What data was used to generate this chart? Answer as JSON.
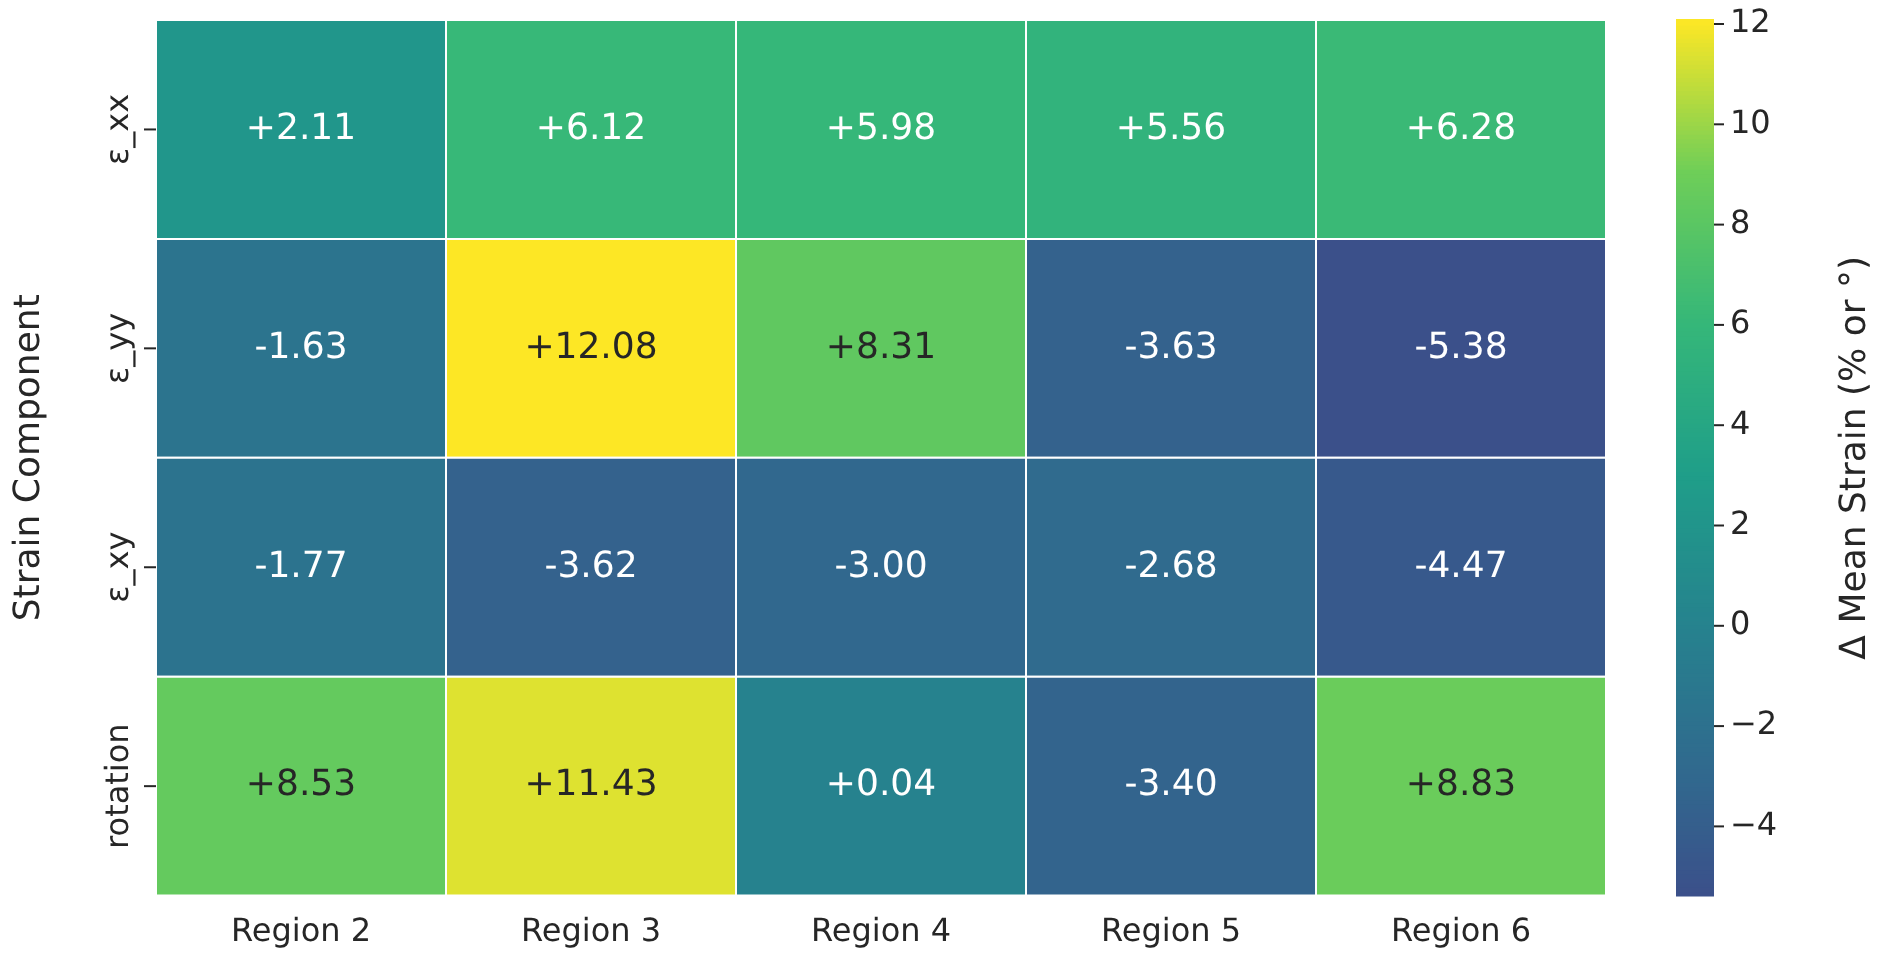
{
  "chart_data": {
    "type": "heatmap",
    "categories": [
      "Region 2",
      "Region 3",
      "Region 4",
      "Region 5",
      "Region 6"
    ],
    "y_categories": [
      "ε_xx",
      "ε_yy",
      "ε_xy",
      "rotation"
    ],
    "cells": [
      [
        2.11,
        6.12,
        5.98,
        5.56,
        6.28
      ],
      [
        -1.63,
        12.08,
        8.31,
        -3.63,
        -5.38
      ],
      [
        -1.77,
        -3.62,
        -3.0,
        -2.68,
        -4.47
      ],
      [
        8.53,
        11.43,
        0.04,
        -3.4,
        8.83
      ]
    ],
    "cell_labels": [
      [
        "+2.11",
        "+6.12",
        "+5.98",
        "+5.56",
        "+6.28"
      ],
      [
        "-1.63",
        "+12.08",
        "+8.31",
        "-3.63",
        "-5.38"
      ],
      [
        "-1.77",
        "-3.62",
        "-3.00",
        "-2.68",
        "-4.47"
      ],
      [
        "+8.53",
        "+11.43",
        "+0.04",
        "-3.40",
        "+8.83"
      ]
    ],
    "ylabel": "Strain Component",
    "clabel": "Δ Mean Strain (% or °)",
    "clim": [
      -5.38,
      12.08
    ],
    "cticks": [
      -4,
      -2,
      0,
      2,
      4,
      6,
      8,
      10,
      12
    ]
  }
}
